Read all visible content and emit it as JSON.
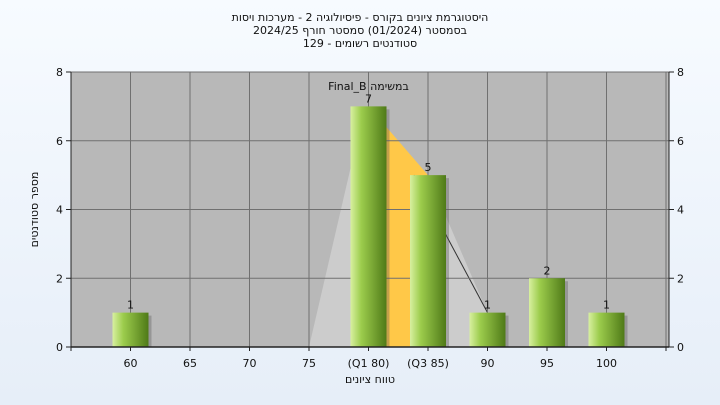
{
  "chart_data": {
    "type": "bar",
    "title_lines": [
      "היסטוגרמת ציונים בקורס - פיסיולוגיה 2 - מערכות ויסות",
      "בסמסטר  (01/2024)  סמסטר חורף 2024/25",
      "סטודנטים רשומים - 129"
    ],
    "categories": [
      "60",
      "65",
      "70",
      "75",
      "(Q1 80)",
      "(Q3 85)",
      "90",
      "95",
      "100"
    ],
    "values": [
      1,
      0,
      0,
      0,
      7,
      5,
      1,
      2,
      1
    ],
    "data_labels": [
      "1",
      "",
      "",
      "",
      "7",
      "5",
      "1",
      "2",
      "1"
    ],
    "ylim": [
      0,
      8
    ],
    "yticks": [
      "0",
      "2",
      "4",
      "6",
      "8"
    ],
    "xlabel": "טווח ציונים",
    "ylabel": "מספר סטודנטים",
    "annotation": "Final_B במשימה",
    "grid": true,
    "colors": {
      "bar_light": "#d8f0a0",
      "bar_mid": "#9ccc4c",
      "bar_dark": "#4f7a18",
      "plot_bg": "#b8b8b8",
      "grid": "#707070",
      "band_orange": "#ffc848",
      "band_grey": "#cfcfcf"
    }
  }
}
